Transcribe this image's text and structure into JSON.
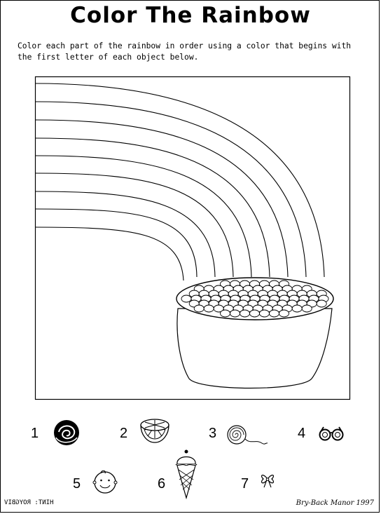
{
  "title": "Color The Rainbow",
  "instructions": "Color each part of the rainbow in order using a color that begins with the first letter of each object below.",
  "items": [
    {
      "number": "1",
      "icon": "rose-icon"
    },
    {
      "number": "2",
      "icon": "orange-slice-icon"
    },
    {
      "number": "3",
      "icon": "yarn-ball-icon"
    },
    {
      "number": "4",
      "icon": "glasses-icon"
    },
    {
      "number": "5",
      "icon": "baby-face-icon"
    },
    {
      "number": "6",
      "icon": "ice-cream-cone-icon"
    },
    {
      "number": "7",
      "icon": "bow-icon"
    }
  ],
  "footer": {
    "hint": "HINT: ROYGBIV",
    "credit": "Bry-Back Manor 1997"
  }
}
